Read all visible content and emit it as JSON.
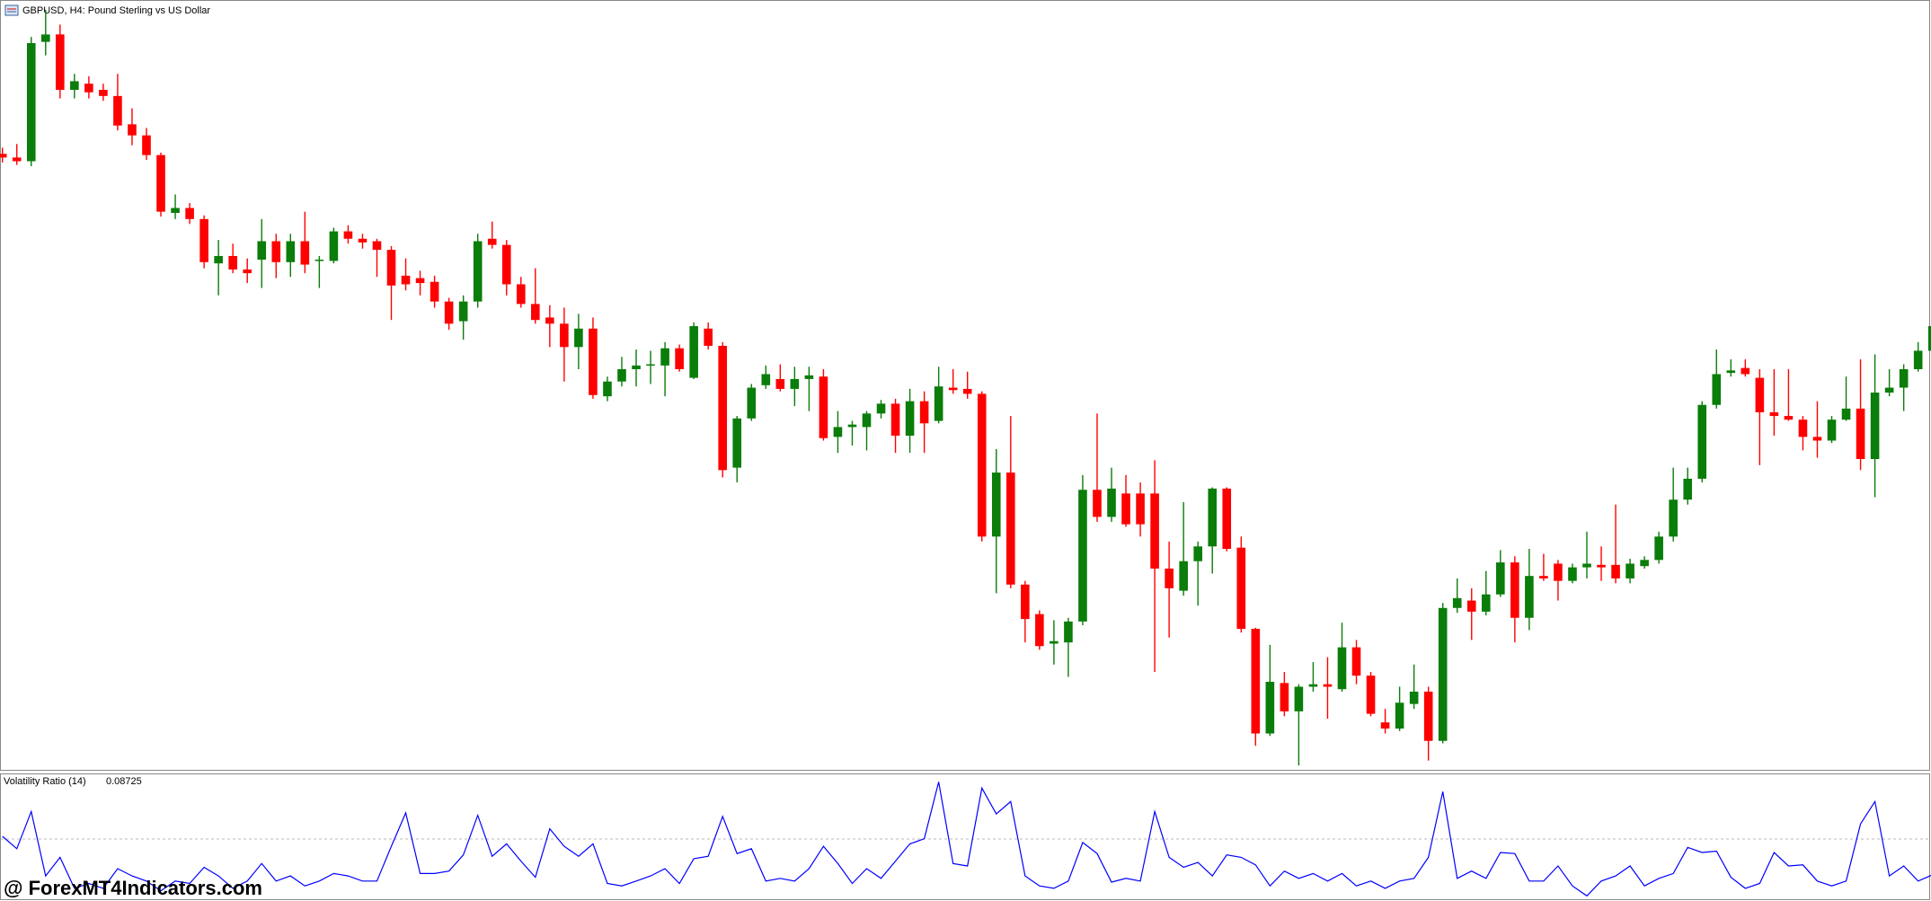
{
  "chart_data": [
    {
      "type": "candlestick",
      "title": "GBPUSD, H4:  Pound Sterling vs US Dollar",
      "up_color": "#0a7d0a",
      "down_color": "#ff0000",
      "ylim": [
        5,
        630
      ],
      "open": [
        505,
        502,
        499,
        596,
        602,
        557,
        562,
        557,
        552,
        529,
        520,
        504,
        457,
        461,
        452,
        416,
        422,
        411,
        419,
        434,
        417,
        434,
        418,
        418,
        442,
        436,
        434,
        427,
        406,
        404,
        401,
        385,
        369,
        385,
        436,
        431,
        399,
        383,
        372,
        367,
        348,
        363,
        308,
        320,
        330,
        333,
        333,
        347,
        323,
        363,
        349,
        250,
        290,
        317,
        322,
        314,
        322,
        324,
        275,
        283,
        283,
        294,
        302,
        276,
        304,
        288,
        315,
        314,
        310,
        194,
        246,
        155,
        131,
        107,
        108,
        125,
        232,
        210,
        229,
        229,
        229,
        168,
        150,
        174,
        186,
        233,
        185,
        119,
        34,
        75,
        52,
        72,
        74,
        70,
        104,
        81,
        43,
        38,
        58,
        68,
        28,
        136,
        142,
        133,
        147,
        173,
        128,
        162,
        172,
        158,
        169,
        171,
        171,
        160,
        170,
        175,
        194,
        224,
        241,
        301,
        327,
        331,
        323,
        295,
        292,
        289,
        275,
        272,
        289,
        298,
        257,
        311,
        315,
        330,
        345
      ],
      "high": [
        510,
        513,
        600,
        622,
        610,
        570,
        568,
        562,
        570,
        542,
        526,
        506,
        472,
        465,
        455,
        435,
        432,
        420,
        452,
        440,
        440,
        458,
        422,
        445,
        447,
        440,
        436,
        430,
        420,
        410,
        406,
        388,
        390,
        440,
        450,
        435,
        405,
        412,
        382,
        380,
        375,
        372,
        324,
        340,
        346,
        345,
        352,
        350,
        368,
        368,
        352,
        292,
        318,
        333,
        334,
        332,
        332,
        330,
        296,
        288,
        296,
        305,
        306,
        314,
        312,
        332,
        330,
        328,
        312,
        265,
        292,
        158,
        134,
        126,
        128,
        244,
        294,
        250,
        244,
        238,
        256,
        190,
        222,
        190,
        234,
        234,
        194,
        120,
        106,
        84,
        74,
        92,
        96,
        124,
        110,
        84,
        54,
        72,
        90,
        72,
        140,
        160,
        152,
        166,
        183,
        178,
        184,
        180,
        175,
        172,
        198,
        186,
        220,
        176,
        178,
        198,
        250,
        250,
        304,
        346,
        338,
        338,
        330,
        330,
        330,
        292,
        304,
        292,
        324,
        338,
        342,
        330,
        334,
        352,
        375
      ],
      "low": [
        498,
        496,
        495,
        585,
        550,
        550,
        550,
        548,
        524,
        512,
        500,
        454,
        452,
        448,
        412,
        390,
        408,
        400,
        396,
        404,
        405,
        408,
        396,
        416,
        432,
        428,
        405,
        370,
        394,
        390,
        380,
        362,
        354,
        380,
        428,
        390,
        380,
        367,
        348,
        320,
        330,
        306,
        304,
        316,
        316,
        318,
        308,
        328,
        322,
        346,
        242,
        238,
        288,
        314,
        312,
        300,
        296,
        272,
        262,
        268,
        264,
        290,
        262,
        262,
        262,
        286,
        310,
        306,
        190,
        148,
        152,
        108,
        102,
        90,
        80,
        122,
        206,
        206,
        202,
        194,
        84,
        112,
        146,
        138,
        164,
        182,
        116,
        24,
        32,
        48,
        8,
        68,
        46,
        68,
        74,
        48,
        34,
        36,
        54,
        12,
        26,
        132,
        110,
        130,
        145,
        108,
        118,
        158,
        142,
        156,
        160,
        158,
        156,
        156,
        168,
        172,
        190,
        220,
        238,
        298,
        324,
        324,
        252,
        276,
        288,
        264,
        258,
        270,
        288,
        248,
        226,
        308,
        296,
        328,
        342
      ],
      "close": [
        502,
        499,
        595,
        602,
        557,
        564,
        555,
        552,
        528,
        520,
        504,
        458,
        461,
        452,
        417,
        422,
        411,
        408,
        434,
        417,
        434,
        415,
        419,
        442,
        436,
        433,
        427,
        398,
        399,
        400,
        385,
        367,
        385,
        434,
        431,
        399,
        383,
        370,
        367,
        348,
        363,
        309,
        320,
        330,
        333,
        334,
        347,
        330,
        365,
        349,
        248,
        290,
        315,
        326,
        314,
        322,
        325,
        274,
        283,
        285,
        294,
        302,
        276,
        304,
        286,
        316,
        313,
        310,
        194,
        246,
        155,
        127,
        105,
        109,
        125,
        232,
        210,
        233,
        204,
        204,
        168,
        152,
        174,
        186,
        233,
        184,
        119,
        34,
        76,
        52,
        72,
        74,
        72,
        104,
        81,
        50,
        38,
        59,
        68,
        28,
        136,
        144,
        133,
        147,
        173,
        128,
        162,
        160,
        158,
        169,
        172,
        169,
        160,
        172,
        175,
        194,
        224,
        241,
        301,
        326,
        329,
        326,
        295,
        292,
        289,
        275,
        272,
        289,
        298,
        257,
        311,
        315,
        330,
        345,
        365
      ]
    },
    {
      "type": "line",
      "title": "Volatility Ratio (14)",
      "current_value": 0.08725,
      "color": "#0000ff",
      "ylim": [
        0,
        0.44
      ],
      "level": 0.22,
      "values": [
        0.23,
        0.184,
        0.322,
        0.083,
        0.152,
        0.037,
        0.055,
        0.037,
        0.11,
        0.083,
        0.064,
        0.028,
        0.064,
        0.055,
        0.115,
        0.083,
        0.037,
        0.064,
        0.129,
        0.064,
        0.083,
        0.046,
        0.064,
        0.092,
        0.083,
        0.064,
        0.064,
        0.193,
        0.317,
        0.092,
        0.092,
        0.101,
        0.161,
        0.308,
        0.156,
        0.202,
        0.138,
        0.078,
        0.258,
        0.193,
        0.156,
        0.202,
        0.055,
        0.046,
        0.064,
        0.083,
        0.11,
        0.055,
        0.147,
        0.156,
        0.304,
        0.166,
        0.184,
        0.064,
        0.074,
        0.064,
        0.11,
        0.193,
        0.129,
        0.055,
        0.11,
        0.074,
        0.138,
        0.202,
        0.221,
        0.432,
        0.129,
        0.12,
        0.409,
        0.313,
        0.359,
        0.083,
        0.046,
        0.037,
        0.064,
        0.207,
        0.166,
        0.06,
        0.074,
        0.064,
        0.322,
        0.152,
        0.115,
        0.133,
        0.083,
        0.161,
        0.152,
        0.124,
        0.046,
        0.101,
        0.074,
        0.092,
        0.064,
        0.092,
        0.046,
        0.064,
        0.037,
        0.064,
        0.074,
        0.152,
        0.396,
        0.074,
        0.101,
        0.074,
        0.17,
        0.166,
        0.064,
        0.064,
        0.12,
        0.046,
        0.009,
        0.064,
        0.083,
        0.12,
        0.046,
        0.074,
        0.092,
        0.189,
        0.17,
        0.175,
        0.078,
        0.037,
        0.055,
        0.17,
        0.12,
        0.124,
        0.064,
        0.046,
        0.064,
        0.276,
        0.359,
        0.083,
        0.12,
        0.064,
        0.08725
      ]
    }
  ],
  "watermark": "@ ForexMT4Indicators.com"
}
